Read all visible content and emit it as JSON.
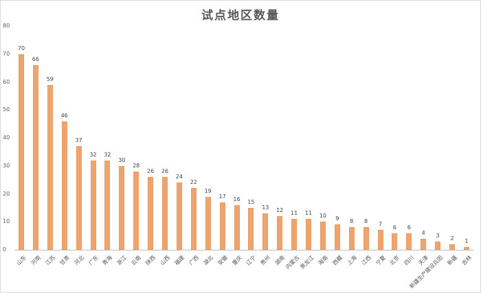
{
  "chart_data": {
    "type": "bar",
    "title": "试点地区数量",
    "xlabel": "",
    "ylabel": "",
    "ylim": [
      0,
      80
    ],
    "yticks": [
      0,
      10,
      20,
      30,
      40,
      50,
      60,
      70,
      80
    ],
    "grid": false,
    "legend": null,
    "bar_color": "#EDA46E",
    "data_labels": true,
    "categories": [
      "山东",
      "河南",
      "江苏",
      "甘肃",
      "河北",
      "广东",
      "青海",
      "浙江",
      "云南",
      "陕西",
      "山西",
      "福建",
      "广西",
      "湖北",
      "安徽",
      "重庆",
      "辽宁",
      "贵州",
      "湖南",
      "内蒙古",
      "黑龙江",
      "海南",
      "西藏",
      "上海",
      "江西",
      "宁夏",
      "北京",
      "四川",
      "天津",
      "新疆生产建设兵团",
      "新疆",
      "吉林"
    ],
    "values": [
      70,
      66,
      59,
      46,
      37,
      32,
      32,
      30,
      28,
      26,
      26,
      24,
      22,
      19,
      17,
      16,
      15,
      13,
      12,
      11,
      11,
      10,
      9,
      8,
      8,
      7,
      6,
      6,
      4,
      3,
      2,
      1
    ]
  }
}
